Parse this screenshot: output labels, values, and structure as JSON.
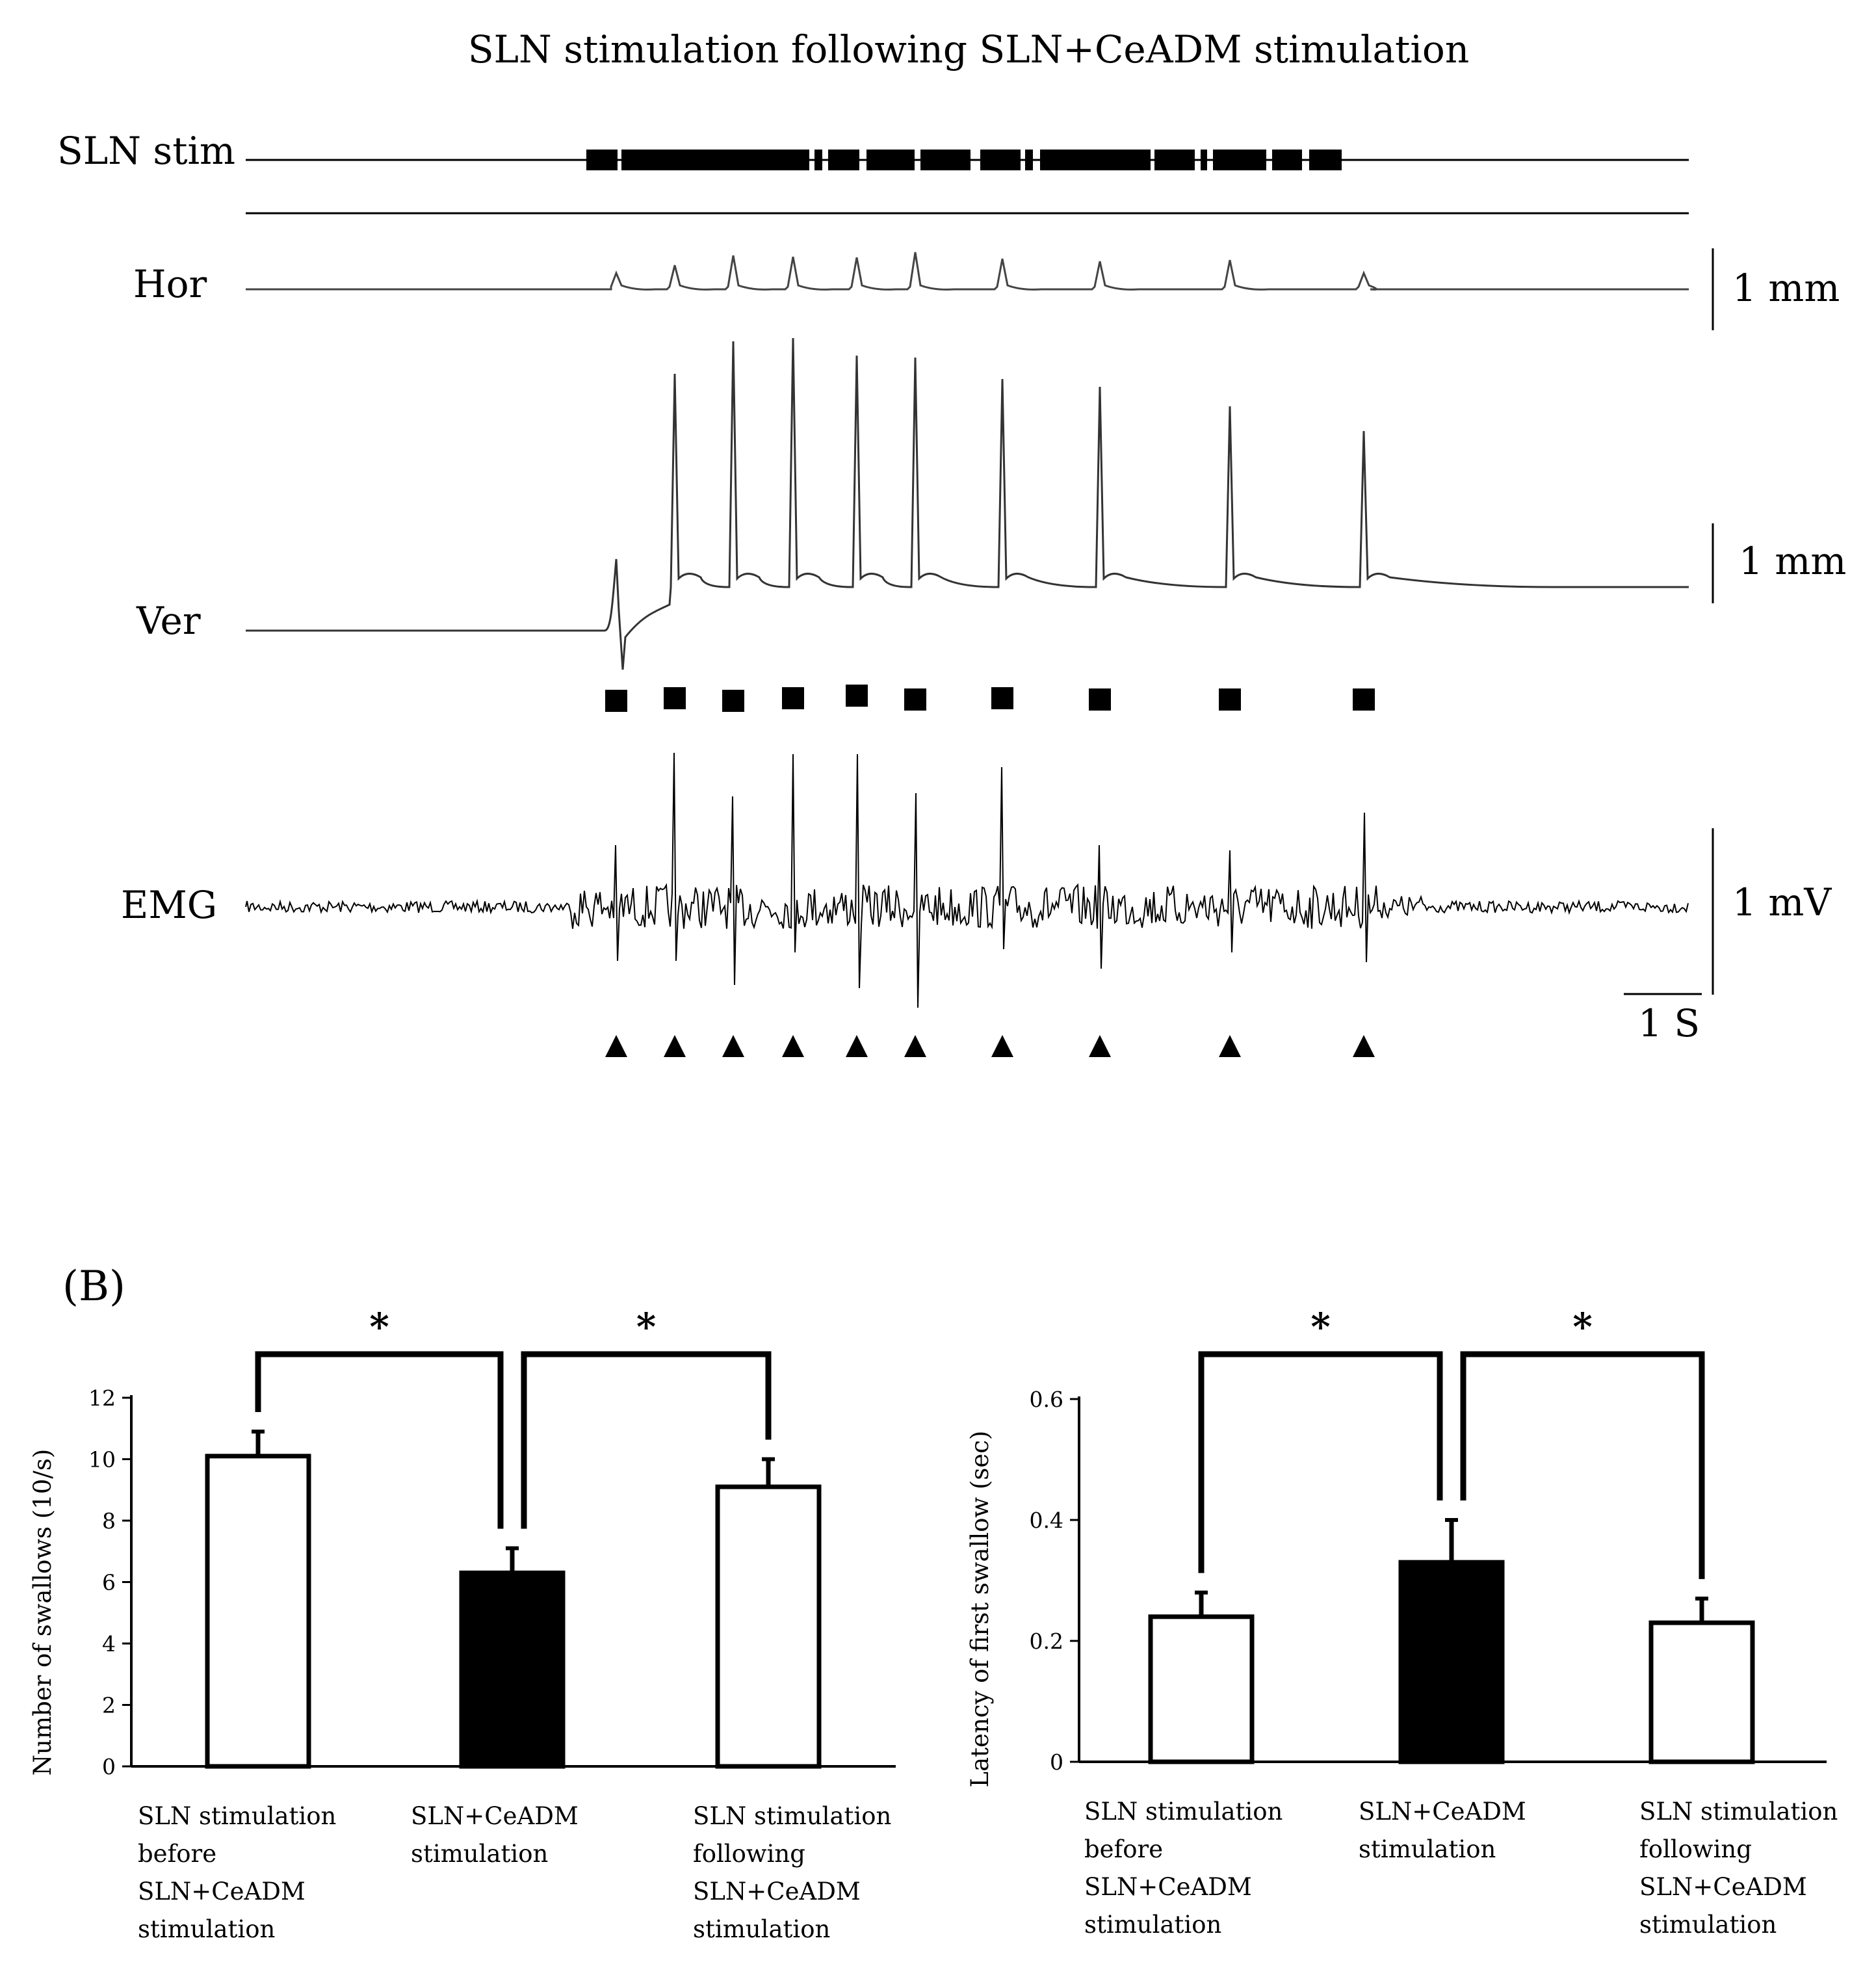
{
  "panel_a": {
    "title": "SLN stimulation following SLN+CeADM stimulation",
    "trace_labels": {
      "stim": "SLN stim",
      "hor": "Hor",
      "ver": "Ver",
      "emg": "EMG"
    },
    "scale_bars": {
      "hor": "1 mm",
      "ver": "1 mm",
      "emg": "1 mV",
      "time": "1 S"
    },
    "marker_colors": {
      "squares": "#000000",
      "triangles": "#000000",
      "trace": "#444444"
    }
  },
  "panel_label": "(B)",
  "chart_data": [
    {
      "type": "bar",
      "categories": [
        "SLN stimulation before SLN+CeADM stimulation",
        "SLN+CeADM stimulation",
        "SLN stimulation following SLN+CeADM stimulation"
      ],
      "category_lines": [
        [
          "SLN stimulation",
          "before",
          "SLN+CeADM",
          "stimulation"
        ],
        [
          "SLN+CeADM",
          "stimulation"
        ],
        [
          "SLN stimulation",
          "following",
          "SLN+CeADM",
          "stimulation"
        ]
      ],
      "values": [
        10.1,
        6.3,
        9.1
      ],
      "errors": [
        0.8,
        0.8,
        0.9
      ],
      "fills": [
        "#ffffff",
        "#000000",
        "#ffffff"
      ],
      "ylabel": "Number of swallows (10/s)",
      "yticks": [
        "0",
        "2",
        "4",
        "6",
        "8",
        "10",
        "12"
      ],
      "ylim": [
        0,
        12
      ],
      "significance": [
        {
          "pair": [
            0,
            1
          ],
          "label": "*"
        },
        {
          "pair": [
            1,
            2
          ],
          "label": "*"
        }
      ]
    },
    {
      "type": "bar",
      "categories": [
        "SLN stimulation before SLN+CeADM stimulation",
        "SLN+CeADM stimulation",
        "SLN stimulation following SLN+CeADM stimulation"
      ],
      "category_lines": [
        [
          "SLN stimulation",
          "before",
          "SLN+CeADM",
          "stimulation"
        ],
        [
          "SLN+CeADM",
          "stimulation"
        ],
        [
          "SLN stimulation",
          "following",
          "SLN+CeADM",
          "stimulation"
        ]
      ],
      "values": [
        0.24,
        0.33,
        0.23
      ],
      "errors": [
        0.04,
        0.07,
        0.04
      ],
      "fills": [
        "#ffffff",
        "#000000",
        "#ffffff"
      ],
      "ylabel": "Latency of first swallow (sec)",
      "yticks": [
        "0",
        "0.2",
        "0.4",
        "0.6"
      ],
      "ylim": [
        0,
        0.6
      ],
      "significance": [
        {
          "pair": [
            0,
            1
          ],
          "label": "*"
        },
        {
          "pair": [
            1,
            2
          ],
          "label": "*"
        }
      ]
    }
  ]
}
